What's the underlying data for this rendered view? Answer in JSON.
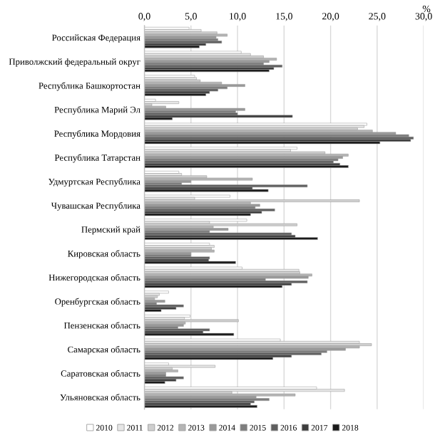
{
  "chart_data": {
    "type": "bar",
    "orientation": "horizontal",
    "xlabel": "%",
    "categories": [
      "Российская Федерация",
      "Приволжский федеральный округ",
      "Республика Башкортостан",
      "Республика Марий Эл",
      "Республика Мордовия",
      "Республика Татарстан",
      "Удмуртская Республика",
      "Чувашская Республика",
      "Пермский край",
      "Кировская область",
      "Нижегородская область",
      "Оренбургская область",
      "Пензенская область",
      "Самарская область",
      "Саратовская область",
      "Ульяновская область"
    ],
    "series": [
      {
        "name": "2010",
        "color": "#ffffff",
        "values": [
          4.8,
          10.4,
          5.4,
          1.2,
          23.9,
          16.4,
          3.7,
          9.2,
          11.0,
          7.0,
          10.5,
          2.6,
          4.9,
          14.6,
          2.6,
          18.5
        ]
      },
      {
        "name": "2011",
        "color": "#e6e6e6",
        "values": [
          6.1,
          11.4,
          5.6,
          3.7,
          23.6,
          15.7,
          4.0,
          5.4,
          7.0,
          7.5,
          16.6,
          1.6,
          4.3,
          23.1,
          7.6,
          21.5
        ]
      },
      {
        "name": "2012",
        "color": "#cfcfcf",
        "values": [
          7.8,
          12.8,
          6.0,
          0.8,
          22.9,
          19.4,
          6.7,
          23.1,
          16.4,
          7.2,
          16.7,
          1.4,
          10.1,
          24.4,
          3.0,
          9.4
        ]
      },
      {
        "name": "2013",
        "color": "#b5b5b5",
        "values": [
          8.9,
          14.2,
          8.3,
          2.3,
          24.5,
          21.9,
          11.6,
          11.4,
          7.4,
          7.5,
          18.0,
          1.1,
          4.4,
          23.1,
          3.6,
          16.2
        ]
      },
      {
        "name": "2014",
        "color": "#999999",
        "values": [
          7.7,
          13.4,
          10.8,
          10.8,
          27.0,
          21.3,
          5.0,
          12.4,
          9.0,
          5.0,
          17.6,
          2.2,
          4.2,
          21.6,
          2.3,
          12.0
        ]
      },
      {
        "name": "2015",
        "color": "#7d7d7d",
        "values": [
          7.9,
          12.8,
          8.9,
          9.8,
          28.4,
          20.8,
          4.0,
          11.9,
          7.0,
          5.0,
          13.0,
          1.3,
          3.6,
          19.6,
          2.3,
          13.4
        ]
      },
      {
        "name": "2016",
        "color": "#5e5e5e",
        "values": [
          8.3,
          14.8,
          7.9,
          10.0,
          28.9,
          20.3,
          17.5,
          14.0,
          15.8,
          7.0,
          17.5,
          4.2,
          7.0,
          19.0,
          4.2,
          11.8
        ]
      },
      {
        "name": "2017",
        "color": "#3d3d3d",
        "values": [
          6.6,
          13.9,
          7.0,
          15.9,
          28.6,
          21.0,
          11.6,
          12.6,
          16.2,
          6.9,
          15.8,
          3.4,
          6.3,
          15.8,
          3.4,
          11.4
        ]
      },
      {
        "name": "2018",
        "color": "#1a1a1a",
        "values": [
          5.9,
          13.4,
          6.6,
          3.0,
          25.3,
          21.9,
          13.3,
          11.4,
          18.6,
          9.8,
          14.8,
          1.8,
          9.6,
          13.8,
          2.2,
          12.1
        ]
      }
    ],
    "xlim": [
      0,
      30
    ],
    "xticks": [
      {
        "value": 0,
        "label": "0,0"
      },
      {
        "value": 5,
        "label": "5,0"
      },
      {
        "value": 10,
        "label": "10,0"
      },
      {
        "value": 15,
        "label": "15,0"
      },
      {
        "value": 20,
        "label": "20,0"
      },
      {
        "value": 25,
        "label": "25,0"
      },
      {
        "value": 30,
        "label": "30,0"
      }
    ],
    "grid": "x",
    "legend": "bottom"
  }
}
